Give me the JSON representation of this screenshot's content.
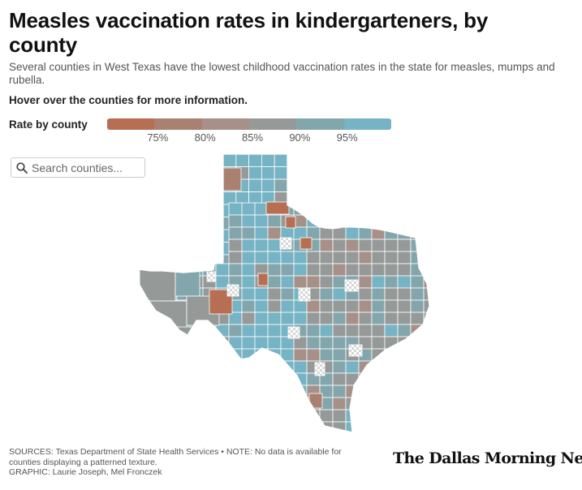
{
  "title": "Measles vaccination rates in kindergarteners, by county",
  "subtitle": "Several counties in West Texas have the lowest childhood vaccination rates in the state for measles, mumps and rubella.",
  "instruction": "Hover over the counties for more information.",
  "legend": {
    "label": "Rate by county",
    "colors": [
      "#b66f52",
      "#aa8070",
      "#a69087",
      "#959a98",
      "#83a6ad",
      "#76b3c4"
    ],
    "ticks": [
      "75%",
      "80%",
      "85%",
      "90%",
      "95%"
    ]
  },
  "search": {
    "placeholder": "Search counties...",
    "value": ""
  },
  "map": {
    "state": "Texas",
    "no_data_pattern": "checkered",
    "shading": "county vaccination rate"
  },
  "footer": {
    "line1": "SOURCES: Texas Department of State Health Services • NOTE: No data is available for",
    "line2": "counties displaying a patterned texture.",
    "line3": "GRAPHIC: Laurie Joseph, Mel Fronczek"
  },
  "brand": "The Dallas Morning News"
}
